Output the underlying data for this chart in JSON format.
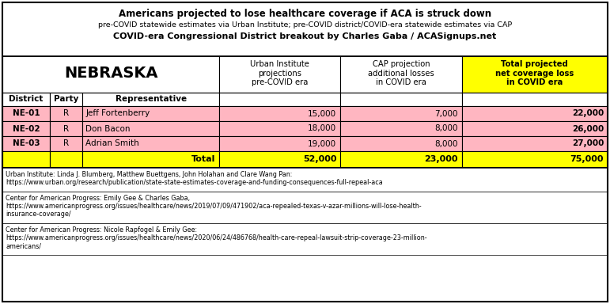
{
  "title_line1": "Americans projected to lose healthcare coverage if ACA is struck down",
  "title_line2": "pre-COVID statewide estimates via Urban Institute; pre-COVID district/COVID-era statewide estimates via CAP",
  "title_line3": "COVID-era Congressional District breakout by Charles Gaba / ACASignups.net",
  "state": "NEBRASKA",
  "col_headers": [
    "Urban Institute\nprojections\npre-COVID era",
    "CAP projection\nadditional losses\nin COVID era",
    "Total projected\nnet coverage loss\nin COVID era"
  ],
  "row_headers": [
    "District",
    "Party",
    "Representative"
  ],
  "rows": [
    [
      "NE-01",
      "R",
      "Jeff Fortenberry",
      "15,000",
      "7,000",
      "22,000"
    ],
    [
      "NE-02",
      "R",
      "Don Bacon",
      "18,000",
      "8,000",
      "26,000"
    ],
    [
      "NE-03",
      "R",
      "Adrian Smith",
      "19,000",
      "8,000",
      "27,000"
    ]
  ],
  "total_row": [
    "",
    "",
    "Total",
    "52,000",
    "23,000",
    "75,000"
  ],
  "footer1": [
    "Urban Institute: Linda J. Blumberg, Matthew Buettgens, John Holahan and Clare Wang Pan:",
    "https://www.urban.org/research/publication/state-state-estimates-coverage-and-funding-consequences-full-repeal-aca"
  ],
  "footer2": [
    "Center for American Progress: Emily Gee & Charles Gaba,",
    "https://www.americanprogress.org/issues/healthcare/news/2019/07/09/471902/aca-repealed-texas-v-azar-millions-will-lose-health-",
    "insurance-coverage/"
  ],
  "footer3": [
    "Center for American Progress: Nicole Rapfogel & Emily Gee:",
    "https://www.americanprogress.org/issues/healthcare/news/2020/06/24/486768/health-care-repeal-lawsuit-strip-coverage-23-million-",
    "americans/"
  ],
  "color_pink": "#FFB6C1",
  "color_yellow": "#FFFF00",
  "color_white": "#FFFFFF",
  "color_black": "#000000"
}
